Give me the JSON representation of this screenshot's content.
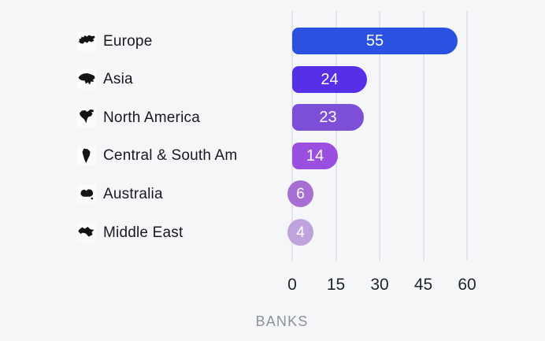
{
  "chart_data": {
    "type": "bar",
    "orientation": "horizontal",
    "title": "",
    "xlabel": "BANKS",
    "ylabel": "",
    "xlim": [
      0,
      60
    ],
    "x_ticks": [
      0,
      15,
      30,
      45,
      60
    ],
    "grid": "vertical-gridlines-on",
    "legend": "none",
    "categories": [
      "Europe",
      "Asia",
      "North America",
      "Central & South Am",
      "Australia",
      "Middle East"
    ],
    "values": [
      55,
      24,
      23,
      14,
      6,
      4
    ],
    "series": [
      {
        "name": "Banks",
        "values": [
          55,
          24,
          23,
          14,
          6,
          4
        ]
      }
    ],
    "bar_colors": [
      "#2b51e0",
      "#5530e6",
      "#7d4ed8",
      "#9b4fe0",
      "#a76fd2",
      "#bfa3dc"
    ],
    "value_label_color": "#ffffff",
    "icons": [
      "europe-continent-icon",
      "asia-continent-icon",
      "north-america-continent-icon",
      "south-america-continent-icon",
      "australia-continent-icon",
      "middle-east-continent-icon"
    ]
  },
  "colors": {
    "background": "#f5f6f8",
    "gridline": "#e4e5e9",
    "category_text": "#17191d",
    "tick_text": "#212428",
    "axis_title_text": "#8e9196",
    "icon_fill": "#141417"
  }
}
